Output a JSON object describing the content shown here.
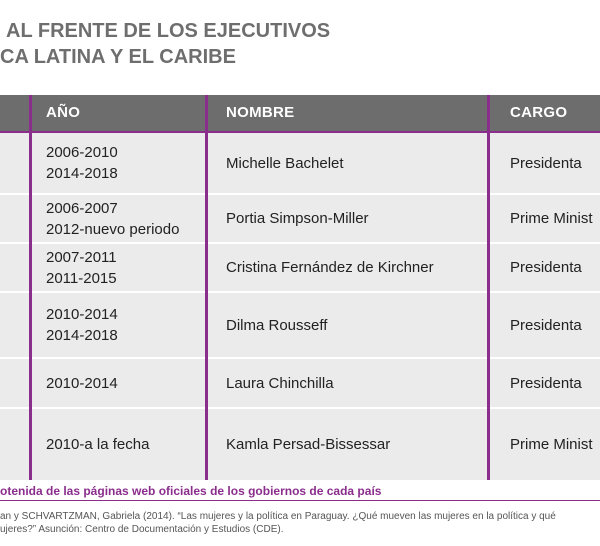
{
  "title": {
    "line1": "AL FRENTE DE LOS EJECUTIVOS",
    "line2": "CA LATINA Y EL CARIBE"
  },
  "table": {
    "headers": {
      "year": "AÑO",
      "name": "NOMBRE",
      "role": "CARGO"
    },
    "rows": [
      {
        "years": [
          "2006-2010",
          "2014-2018"
        ],
        "name": "Michelle Bachelet",
        "role": "Presidenta"
      },
      {
        "years": [
          "2006-2007",
          "2012-nuevo periodo"
        ],
        "name": "Portia Simpson-Miller",
        "role": "Prime Minist"
      },
      {
        "years": [
          "2007-2011",
          "2011-2015"
        ],
        "name": "Cristina Fernández de Kirchner",
        "role": "Presidenta"
      },
      {
        "years": [
          "2010-2014",
          "2014-2018"
        ],
        "name": "Dilma Rousseff",
        "role": "Presidenta"
      },
      {
        "years": [
          "2010-2014"
        ],
        "name": "Laura Chinchilla",
        "role": "Presidenta"
      },
      {
        "years": [
          "2010-a la fecha"
        ],
        "name": "Kamla Persad-Bissessar",
        "role": "Prime Minist"
      }
    ]
  },
  "footer": {
    "source": "otenida de las páginas web oficiales de los gobiernos de cada país",
    "ref_line1": "an y SCHVARTZMAN, Gabriela (2014). “Las mujeres y la política en Paraguay. ¿Qué mueven las mujeres en la política y qué",
    "ref_line2": "ujeres?” Asunción: Centro de Documentación y Estudios (CDE)."
  }
}
